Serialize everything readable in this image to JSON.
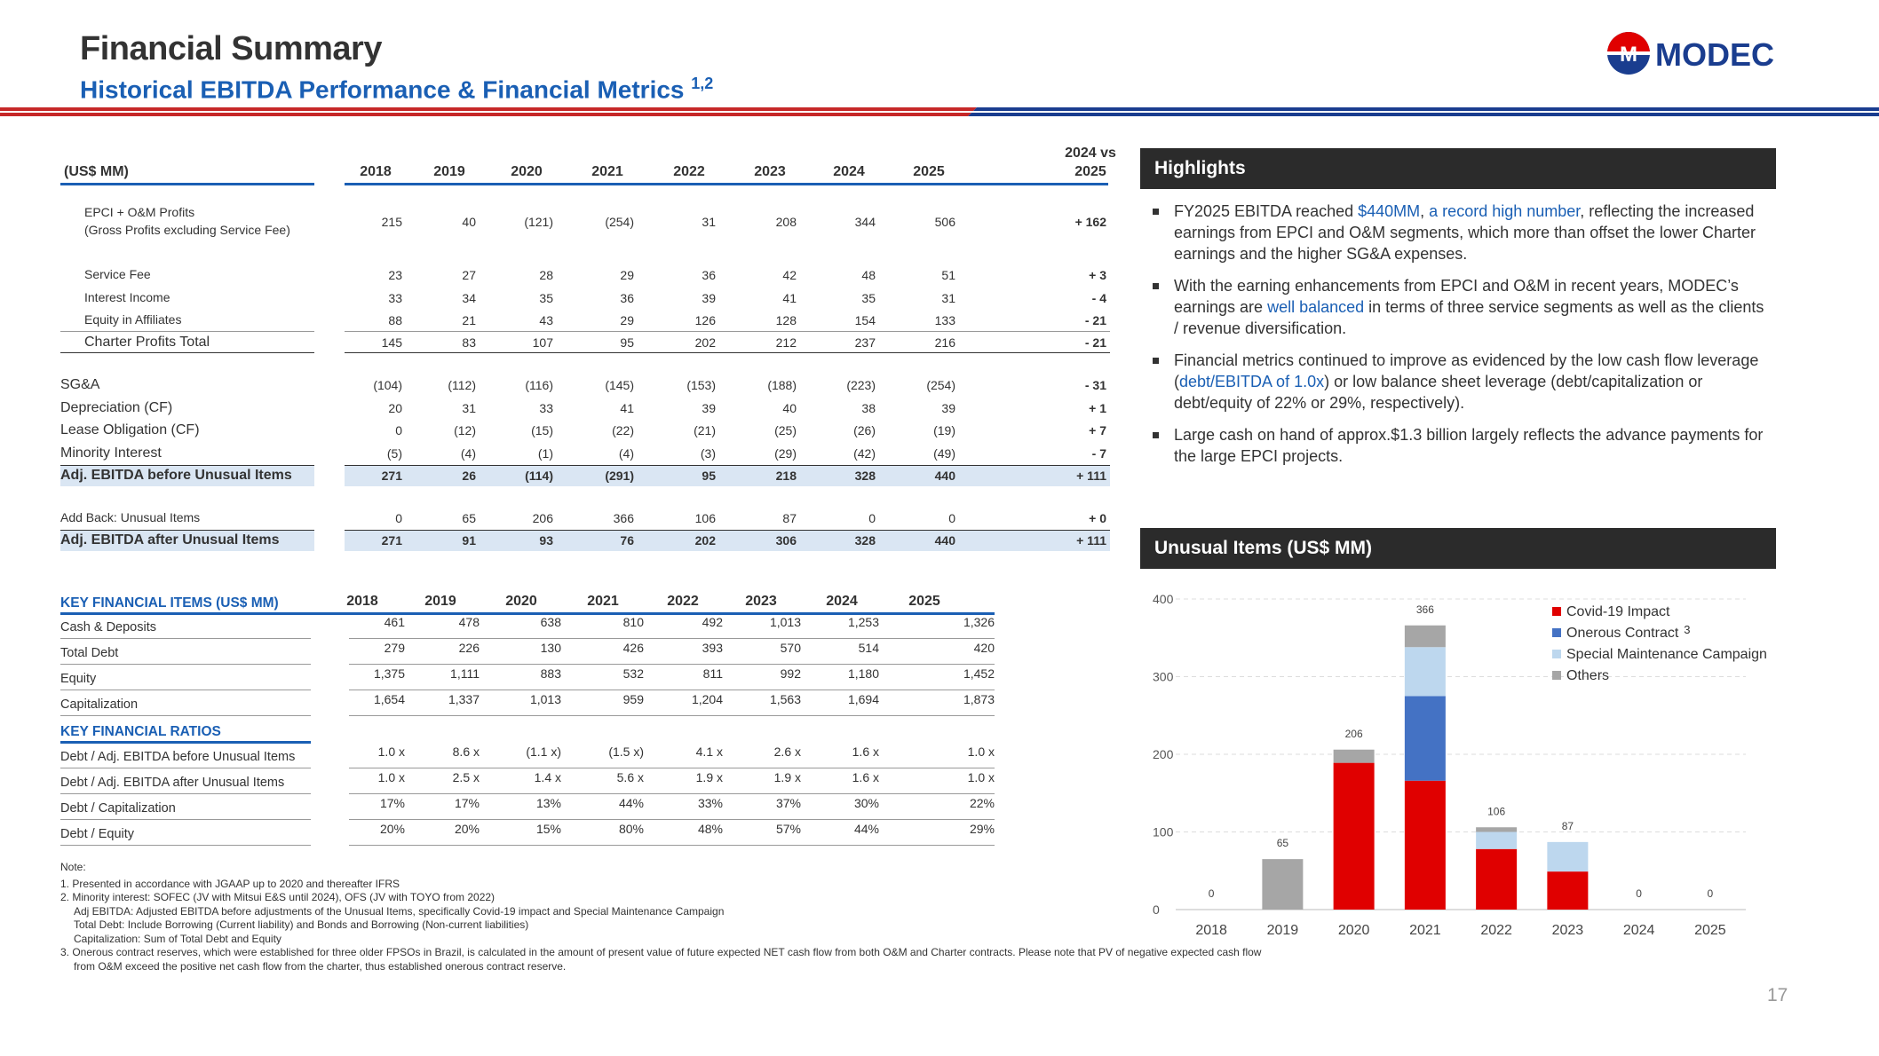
{
  "header": {
    "title": "Financial Summary",
    "subtitle": "Historical EBITDA Performance & Financial Metrics",
    "subtitle_sup": "1,2",
    "logo_text": "MODEC"
  },
  "ebitda_table": {
    "label_header": "(US$ MM)",
    "years": [
      "2018",
      "2019",
      "2020",
      "2021",
      "2022",
      "2023",
      "2024",
      "2025"
    ],
    "delta_header_1": "2024 vs",
    "delta_header_2": "2025",
    "rows": [
      {
        "label": "EPCI + O&M Profits",
        "label2": "(Gross Profits excluding Service Fee)",
        "values": [
          "215",
          "40",
          "(121)",
          "(254)",
          "31",
          "208",
          "344",
          "506"
        ],
        "delta": "+ 162"
      },
      {
        "label": "Service Fee",
        "values": [
          "23",
          "27",
          "28",
          "29",
          "36",
          "42",
          "48",
          "51"
        ],
        "delta": "+ 3"
      },
      {
        "label": "Interest Income",
        "values": [
          "33",
          "34",
          "35",
          "36",
          "39",
          "41",
          "35",
          "31"
        ],
        "delta": "- 4"
      },
      {
        "label": "Equity in Affiliates",
        "values": [
          "88",
          "21",
          "43",
          "29",
          "126",
          "128",
          "154",
          "133"
        ],
        "delta": "- 21"
      },
      {
        "label": "Charter Profits Total",
        "values": [
          "145",
          "83",
          "107",
          "95",
          "202",
          "212",
          "237",
          "216"
        ],
        "delta": "- 21"
      },
      {
        "label": "SG&A",
        "values": [
          "(104)",
          "(112)",
          "(116)",
          "(145)",
          "(153)",
          "(188)",
          "(223)",
          "(254)"
        ],
        "delta": "- 31"
      },
      {
        "label": "Depreciation (CF)",
        "values": [
          "20",
          "31",
          "33",
          "41",
          "39",
          "40",
          "38",
          "39"
        ],
        "delta": "+ 1"
      },
      {
        "label": "Lease Obligation (CF)",
        "values": [
          "0",
          "(12)",
          "(15)",
          "(22)",
          "(21)",
          "(25)",
          "(26)",
          "(19)"
        ],
        "delta": "+ 7"
      },
      {
        "label": "Minority Interest",
        "values": [
          "(5)",
          "(4)",
          "(1)",
          "(4)",
          "(3)",
          "(29)",
          "(42)",
          "(49)"
        ],
        "delta": "- 7"
      },
      {
        "label": "Adj. EBITDA before Unusual Items",
        "values": [
          "271",
          "26",
          "(114)",
          "(291)",
          "95",
          "218",
          "328",
          "440"
        ],
        "delta": "+ 111"
      },
      {
        "label": "Add Back: Unusual Items",
        "values": [
          "0",
          "65",
          "206",
          "366",
          "106",
          "87",
          "0",
          "0"
        ],
        "delta": "+ 0"
      },
      {
        "label": "Adj. EBITDA after Unusual Items",
        "values": [
          "271",
          "91",
          "93",
          "76",
          "202",
          "306",
          "328",
          "440"
        ],
        "delta": "+ 111"
      }
    ]
  },
  "key_table": {
    "items_header": "KEY FINANCIAL ITEMS (US$ MM)",
    "ratios_header": "KEY FINANCIAL RATIOS",
    "years": [
      "2018",
      "2019",
      "2020",
      "2021",
      "2022",
      "2023",
      "2024",
      "2025"
    ],
    "items": [
      {
        "label": "Cash & Deposits",
        "values": [
          "461",
          "478",
          "638",
          "810",
          "492",
          "1,013",
          "1,253",
          "1,326"
        ]
      },
      {
        "label": "Total Debt",
        "values": [
          "279",
          "226",
          "130",
          "426",
          "393",
          "570",
          "514",
          "420"
        ]
      },
      {
        "label": "Equity",
        "values": [
          "1,375",
          "1,111",
          "883",
          "532",
          "811",
          "992",
          "1,180",
          "1,452"
        ]
      },
      {
        "label": "Capitalization",
        "values": [
          "1,654",
          "1,337",
          "1,013",
          "959",
          "1,204",
          "1,563",
          "1,694",
          "1,873"
        ]
      }
    ],
    "ratios": [
      {
        "label": "Debt / Adj. EBITDA before Unusual Items",
        "values": [
          "1.0 x",
          "8.6 x",
          "(1.1 x)",
          "(1.5 x)",
          "4.1 x",
          "2.6 x",
          "1.6 x",
          "1.0 x"
        ]
      },
      {
        "label": "Debt / Adj. EBITDA after Unusual Items",
        "values": [
          "1.0 x",
          "2.5 x",
          "1.4 x",
          "5.6 x",
          "1.9 x",
          "1.9 x",
          "1.6 x",
          "1.0 x"
        ]
      },
      {
        "label": "Debt / Capitalization",
        "values": [
          "17%",
          "17%",
          "13%",
          "44%",
          "33%",
          "37%",
          "30%",
          "22%"
        ]
      },
      {
        "label": "Debt / Equity",
        "values": [
          "20%",
          "20%",
          "15%",
          "80%",
          "48%",
          "57%",
          "44%",
          "29%"
        ]
      }
    ]
  },
  "highlights": {
    "title": "Highlights",
    "b1_a": "FY2025 EBITDA reached ",
    "b1_b": "$440MM",
    "b1_c": ", ",
    "b1_d": "a record high number",
    "b1_e": ", reflecting the increased earnings from EPCI and O&M segments, which more than offset the lower Charter earnings and the higher SG&A expenses.",
    "b2_a": "With the earning enhancements from EPCI and O&M in recent years, MODEC’s earnings are ",
    "b2_b": "well balanced",
    "b2_c": " in terms of three service segments as well as the clients / revenue diversification.",
    "b3_a": "Financial metrics continued to improve as evidenced by the low cash flow leverage (",
    "b3_b": "debt/EBITDA of 1.0x",
    "b3_c": ") or low balance sheet leverage (debt/capitalization or debt/equity of 22% or 29%, respectively).",
    "b4": "Large cash on hand of approx.$1.3 billion largely reflects the advance payments for the large EPCI projects."
  },
  "unusual": {
    "title": "Unusual Items (US$ MM)"
  },
  "chart_data": {
    "type": "bar",
    "stacked": true,
    "categories": [
      "2018",
      "2019",
      "2020",
      "2021",
      "2022",
      "2023",
      "2024",
      "2025"
    ],
    "series": [
      {
        "name": "Covid-19 Impact",
        "color": "#e00000",
        "values": [
          0,
          0,
          189,
          166,
          78,
          49,
          0,
          0
        ]
      },
      {
        "name": "Onerous Contract",
        "name_sup": "3",
        "color": "#4472c4",
        "values": [
          0,
          0,
          0,
          109,
          0,
          0,
          0,
          0
        ]
      },
      {
        "name": "Special Maintenance Campaign",
        "color": "#bdd7ee",
        "values": [
          0,
          0,
          0,
          63,
          22,
          38,
          0,
          0
        ]
      },
      {
        "name": "Others",
        "color": "#a6a6a6",
        "values": [
          0,
          65,
          17,
          28,
          6,
          0,
          0,
          0
        ]
      }
    ],
    "totals": [
      "0",
      "65",
      "206",
      "366",
      "106",
      "87",
      "0",
      "0"
    ],
    "ylim": [
      0,
      400
    ],
    "yticks": [
      "0",
      "100",
      "200",
      "300",
      "400"
    ],
    "grid": true,
    "legend": "top-right"
  },
  "notes": {
    "l0": "Note:",
    "l1": "1. Presented in accordance with JGAAP up to 2020 and thereafter IFRS",
    "l2": "2. Minority interest: SOFEC (JV with Mitsui E&S until 2024), OFS (JV with TOYO from 2022)",
    "l3": "Adj EBITDA: Adjusted EBITDA before adjustments of the Unusual Items, specifically Covid-19 impact and Special Maintenance Campaign",
    "l4": "Total Debt: Include Borrowing (Current liability) and Bonds and Borrowing (Non-current liabilities)",
    "l5": "Capitalization: Sum of Total Debt and Equity",
    "l6": "3. Onerous contract reserves, which were established for three older FPSOs in Brazil, is calculated in the amount of present value of future expected NET cash flow from both O&M and Charter contracts. Please note that PV of negative expected cash flow",
    "l7": "from O&M exceed the positive net cash flow from the charter, thus established onerous contract reserve."
  },
  "page_number": "17"
}
